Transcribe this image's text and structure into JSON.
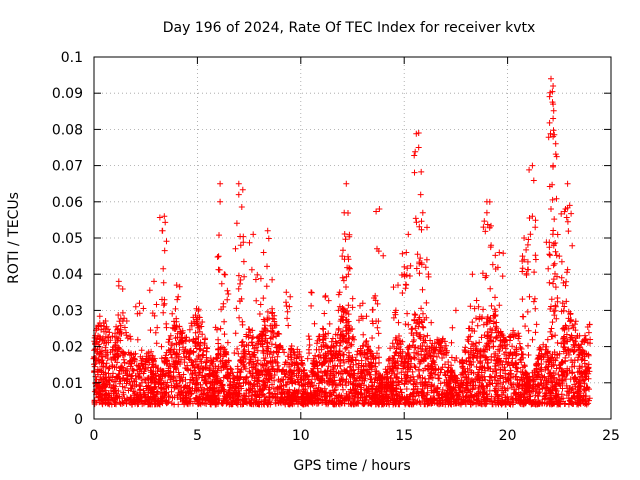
{
  "chart_data": {
    "type": "scatter",
    "title": "Day 196 of 2024, Rate Of TEC Index for receiver kvtx",
    "xlabel": "GPS time / hours",
    "ylabel": "ROTI / TECUs",
    "xlim": [
      0,
      25
    ],
    "ylim": [
      0,
      0.1
    ],
    "xticks": [
      0,
      5,
      10,
      15,
      20,
      25
    ],
    "yticks": [
      0,
      0.01,
      0.02,
      0.03,
      0.04,
      0.05,
      0.06,
      0.07,
      0.08,
      0.09,
      0.1
    ],
    "xtick_labels": [
      "0",
      "5",
      "10",
      "15",
      "20",
      "25"
    ],
    "ytick_labels": [
      "0",
      "0.01",
      "0.02",
      "0.03",
      "0.04",
      "0.05",
      "0.06",
      "0.07",
      "0.08",
      "0.09",
      "0.1"
    ],
    "grid": true,
    "marker": "+",
    "color": "#ff0000",
    "series": [
      {
        "name": "ROTI",
        "x_range": [
          0,
          24
        ],
        "baseline_range": [
          0.004,
          0.022
        ],
        "peaks": [
          {
            "x": 0.2,
            "y": 0.023
          },
          {
            "x": 1.2,
            "y": 0.038
          },
          {
            "x": 2.2,
            "y": 0.032
          },
          {
            "x": 2.9,
            "y": 0.038
          },
          {
            "x": 3.4,
            "y": 0.056
          },
          {
            "x": 3.3,
            "y": 0.052
          },
          {
            "x": 4.0,
            "y": 0.037
          },
          {
            "x": 5.0,
            "y": 0.028
          },
          {
            "x": 6.1,
            "y": 0.065
          },
          {
            "x": 6.1,
            "y": 0.06
          },
          {
            "x": 6.3,
            "y": 0.04
          },
          {
            "x": 7.0,
            "y": 0.065
          },
          {
            "x": 7.0,
            "y": 0.062
          },
          {
            "x": 7.1,
            "y": 0.048
          },
          {
            "x": 7.7,
            "y": 0.051
          },
          {
            "x": 8.4,
            "y": 0.052
          },
          {
            "x": 8.2,
            "y": 0.046
          },
          {
            "x": 9.3,
            "y": 0.035
          },
          {
            "x": 10.5,
            "y": 0.035
          },
          {
            "x": 11.2,
            "y": 0.034
          },
          {
            "x": 12.2,
            "y": 0.065
          },
          {
            "x": 12.1,
            "y": 0.057
          },
          {
            "x": 12.0,
            "y": 0.045
          },
          {
            "x": 12.3,
            "y": 0.04
          },
          {
            "x": 13.0,
            "y": 0.032
          },
          {
            "x": 13.8,
            "y": 0.058
          },
          {
            "x": 13.6,
            "y": 0.034
          },
          {
            "x": 14.7,
            "y": 0.037
          },
          {
            "x": 15.2,
            "y": 0.051
          },
          {
            "x": 15.1,
            "y": 0.046
          },
          {
            "x": 15.7,
            "y": 0.079
          },
          {
            "x": 15.7,
            "y": 0.075
          },
          {
            "x": 15.8,
            "y": 0.062
          },
          {
            "x": 15.9,
            "y": 0.057
          },
          {
            "x": 16.1,
            "y": 0.044
          },
          {
            "x": 17.5,
            "y": 0.03
          },
          {
            "x": 18.3,
            "y": 0.04
          },
          {
            "x": 18.6,
            "y": 0.031
          },
          {
            "x": 19.0,
            "y": 0.06
          },
          {
            "x": 19.0,
            "y": 0.057
          },
          {
            "x": 19.2,
            "y": 0.048
          },
          {
            "x": 19.6,
            "y": 0.046
          },
          {
            "x": 20.8,
            "y": 0.05
          },
          {
            "x": 20.8,
            "y": 0.044
          },
          {
            "x": 21.2,
            "y": 0.07
          },
          {
            "x": 21.2,
            "y": 0.056
          },
          {
            "x": 22.1,
            "y": 0.094
          },
          {
            "x": 22.2,
            "y": 0.092
          },
          {
            "x": 22.2,
            "y": 0.087
          },
          {
            "x": 22.2,
            "y": 0.083
          },
          {
            "x": 22.2,
            "y": 0.078
          },
          {
            "x": 22.2,
            "y": 0.07
          },
          {
            "x": 22.1,
            "y": 0.058
          },
          {
            "x": 22.5,
            "y": 0.045
          },
          {
            "x": 22.9,
            "y": 0.065
          },
          {
            "x": 22.8,
            "y": 0.058
          },
          {
            "x": 23.3,
            "y": 0.027
          }
        ]
      }
    ]
  }
}
